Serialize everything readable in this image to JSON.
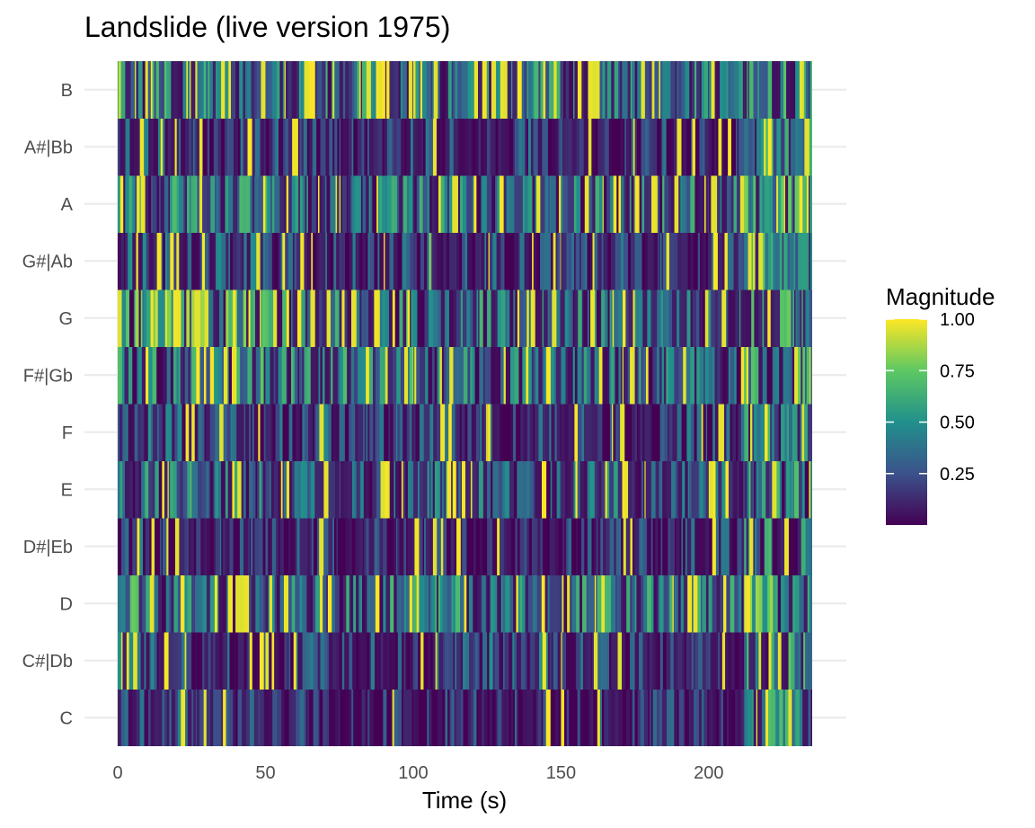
{
  "chart_data": {
    "type": "heatmap",
    "title": "Landslide (live version 1975)",
    "xlabel": "Time (s)",
    "ylabel": "",
    "x_range": [
      0,
      235
    ],
    "x_ticks": [
      0,
      50,
      100,
      150,
      200
    ],
    "x_tick_labels": [
      "0",
      "50",
      "100",
      "150",
      "200"
    ],
    "y_categories": [
      "C",
      "C#|Db",
      "D",
      "D#|Eb",
      "E",
      "F",
      "F#|Gb",
      "G",
      "G#|Ab",
      "A",
      "A#|Bb",
      "B"
    ],
    "grid": true,
    "colormap": "viridis",
    "colors": [
      "#440154",
      "#3b528b",
      "#21908c",
      "#5dc863",
      "#fde725"
    ],
    "legend": {
      "title": "Magnitude",
      "position": "right",
      "range": [
        0,
        1
      ],
      "ticks": [
        0.25,
        0.5,
        0.75,
        1.0
      ],
      "tick_labels": [
        "0.25",
        "0.50",
        "0.75",
        "1.00"
      ]
    },
    "segments": [
      {
        "start": 0,
        "end": 25,
        "values": [
          0.2,
          0.3,
          0.5,
          0.2,
          0.4,
          0.25,
          0.55,
          0.65,
          0.25,
          0.45,
          0.2,
          0.45
        ]
      },
      {
        "start": 25,
        "end": 50,
        "values": [
          0.1,
          0.15,
          0.4,
          0.15,
          0.35,
          0.25,
          0.5,
          0.6,
          0.25,
          0.4,
          0.15,
          0.45
        ]
      },
      {
        "start": 50,
        "end": 75,
        "values": [
          0.1,
          0.15,
          0.35,
          0.1,
          0.3,
          0.2,
          0.4,
          0.45,
          0.2,
          0.4,
          0.15,
          0.4
        ]
      },
      {
        "start": 75,
        "end": 100,
        "values": [
          0.1,
          0.15,
          0.45,
          0.1,
          0.3,
          0.2,
          0.45,
          0.4,
          0.2,
          0.45,
          0.15,
          0.4
        ]
      },
      {
        "start": 100,
        "end": 125,
        "values": [
          0.1,
          0.2,
          0.45,
          0.1,
          0.3,
          0.2,
          0.35,
          0.4,
          0.2,
          0.4,
          0.15,
          0.4
        ]
      },
      {
        "start": 125,
        "end": 150,
        "values": [
          0.1,
          0.25,
          0.35,
          0.1,
          0.25,
          0.15,
          0.35,
          0.35,
          0.2,
          0.35,
          0.2,
          0.4
        ]
      },
      {
        "start": 150,
        "end": 175,
        "values": [
          0.1,
          0.2,
          0.4,
          0.15,
          0.3,
          0.2,
          0.35,
          0.35,
          0.2,
          0.4,
          0.15,
          0.4
        ]
      },
      {
        "start": 175,
        "end": 200,
        "values": [
          0.1,
          0.2,
          0.45,
          0.15,
          0.3,
          0.2,
          0.35,
          0.3,
          0.2,
          0.4,
          0.15,
          0.4
        ]
      },
      {
        "start": 200,
        "end": 212,
        "values": [
          0.1,
          0.2,
          0.45,
          0.2,
          0.3,
          0.2,
          0.3,
          0.3,
          0.2,
          0.35,
          0.15,
          0.45
        ]
      },
      {
        "start": 212,
        "end": 235,
        "values": [
          0.45,
          0.55,
          0.6,
          0.45,
          0.45,
          0.4,
          0.5,
          0.5,
          0.5,
          0.55,
          0.45,
          0.5
        ]
      }
    ]
  }
}
